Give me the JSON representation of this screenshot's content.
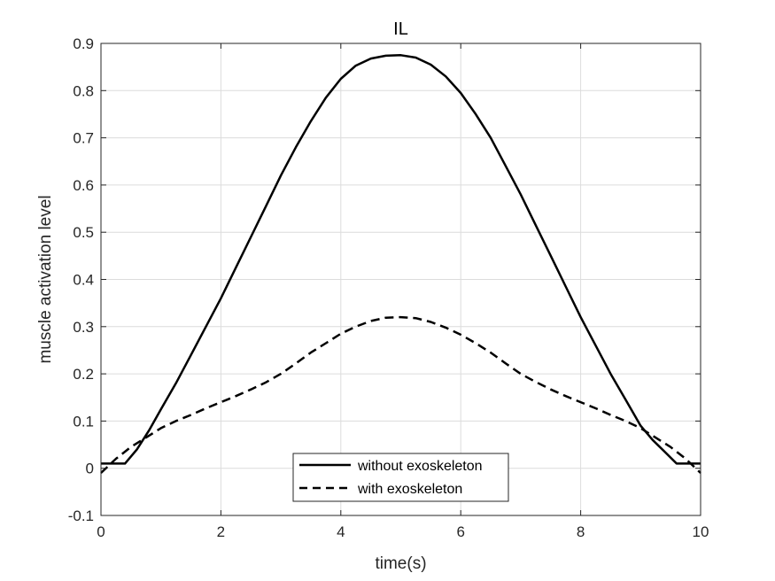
{
  "chart_data": {
    "type": "line",
    "title": "IL",
    "xlabel": "time(s)",
    "ylabel": "muscle activation level",
    "xlim": [
      0,
      10
    ],
    "ylim": [
      -0.1,
      0.9
    ],
    "xticks": [
      0,
      2,
      4,
      6,
      8,
      10
    ],
    "xtick_labels": [
      "0",
      "2",
      "4",
      "6",
      "8",
      "10"
    ],
    "yticks": [
      -0.1,
      0,
      0.1,
      0.2,
      0.3,
      0.4,
      0.5,
      0.6,
      0.7,
      0.8,
      0.9
    ],
    "ytick_labels": [
      "-0.1",
      "0",
      "0.1",
      "0.2",
      "0.3",
      "0.4",
      "0.5",
      "0.6",
      "0.7",
      "0.8",
      "0.9"
    ],
    "grid": true,
    "legend_position": "bottom-center",
    "series": [
      {
        "name": "without exoskeleton",
        "style": "solid",
        "color": "#000000",
        "x": [
          0,
          0.4,
          0.6,
          0.8,
          1.0,
          1.25,
          1.5,
          1.75,
          2.0,
          2.25,
          2.5,
          2.75,
          3.0,
          3.25,
          3.5,
          3.75,
          4.0,
          4.25,
          4.5,
          4.75,
          5.0,
          5.25,
          5.5,
          5.75,
          6.0,
          6.25,
          6.5,
          6.75,
          7.0,
          7.25,
          7.5,
          7.75,
          8.0,
          8.25,
          8.5,
          8.75,
          9.0,
          9.2,
          9.4,
          9.6,
          10.0
        ],
        "y": [
          0.01,
          0.01,
          0.04,
          0.08,
          0.125,
          0.18,
          0.24,
          0.3,
          0.36,
          0.425,
          0.49,
          0.555,
          0.62,
          0.68,
          0.735,
          0.785,
          0.825,
          0.853,
          0.868,
          0.874,
          0.875,
          0.87,
          0.855,
          0.83,
          0.795,
          0.75,
          0.7,
          0.64,
          0.58,
          0.515,
          0.45,
          0.385,
          0.32,
          0.26,
          0.2,
          0.145,
          0.09,
          0.06,
          0.035,
          0.01,
          0.01
        ]
      },
      {
        "name": "with exoskeleton",
        "style": "dashed",
        "color": "#000000",
        "x": [
          0,
          0.25,
          0.5,
          0.75,
          1.0,
          1.25,
          1.5,
          1.75,
          2.0,
          2.25,
          2.5,
          2.75,
          3.0,
          3.25,
          3.5,
          3.75,
          4.0,
          4.25,
          4.5,
          4.75,
          5.0,
          5.25,
          5.5,
          5.75,
          6.0,
          6.25,
          6.5,
          6.75,
          7.0,
          7.25,
          7.5,
          7.75,
          8.0,
          8.25,
          8.5,
          8.75,
          9.0,
          9.25,
          9.5,
          9.75,
          10.0
        ],
        "y": [
          -0.01,
          0.02,
          0.045,
          0.065,
          0.085,
          0.1,
          0.113,
          0.127,
          0.14,
          0.153,
          0.167,
          0.182,
          0.2,
          0.222,
          0.245,
          0.265,
          0.285,
          0.3,
          0.312,
          0.319,
          0.32,
          0.318,
          0.31,
          0.298,
          0.283,
          0.265,
          0.245,
          0.222,
          0.2,
          0.183,
          0.167,
          0.153,
          0.14,
          0.127,
          0.113,
          0.1,
          0.085,
          0.065,
          0.045,
          0.02,
          -0.01
        ]
      }
    ]
  }
}
